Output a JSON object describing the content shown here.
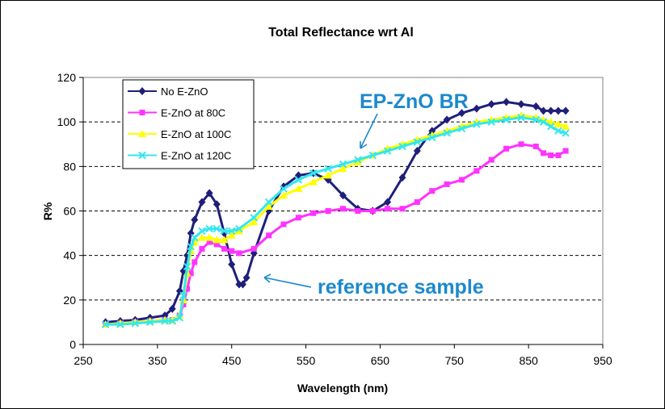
{
  "chart_data": {
    "type": "line",
    "title": "Total Reflectance wrt Al",
    "xlabel": "Wavelength (nm)",
    "ylabel": "R%",
    "xlim": [
      250,
      950
    ],
    "ylim": [
      0,
      120
    ],
    "xticks": [
      250,
      350,
      450,
      550,
      650,
      750,
      850,
      950
    ],
    "yticks": [
      0,
      20,
      40,
      60,
      80,
      100,
      120
    ],
    "grid": "horizontal dashed",
    "legend_position": "top-left",
    "annotations": [
      {
        "text": "EP-ZnO BR",
        "color": "#1c89cc",
        "points_to": [
          612,
          82
        ]
      },
      {
        "text": "reference sample",
        "color": "#1c89cc",
        "points_to": [
          462,
          29
        ]
      }
    ],
    "series": [
      {
        "name": "No E-ZnO",
        "color": "#1f1f7a",
        "marker": "diamond",
        "x": [
          280,
          300,
          320,
          340,
          360,
          370,
          380,
          385,
          390,
          395,
          400,
          410,
          420,
          430,
          440,
          450,
          460,
          465,
          470,
          480,
          500,
          520,
          540,
          560,
          580,
          600,
          620,
          640,
          660,
          680,
          700,
          720,
          740,
          760,
          780,
          800,
          820,
          840,
          860,
          870,
          880,
          890,
          900
        ],
        "y": [
          10,
          10.5,
          11,
          12,
          13,
          16,
          24,
          33,
          40,
          50,
          56,
          64,
          68,
          63,
          50,
          36,
          27,
          27,
          30,
          41,
          60,
          71,
          76,
          77,
          74,
          67,
          61,
          60,
          64,
          75,
          87,
          96,
          101,
          104,
          106,
          108,
          109,
          108,
          107,
          105,
          105,
          105,
          105
        ]
      },
      {
        "name": "E-ZnO at 80C",
        "color": "#ff33ff",
        "marker": "square",
        "x": [
          280,
          300,
          320,
          340,
          360,
          370,
          380,
          385,
          390,
          395,
          400,
          410,
          420,
          430,
          440,
          450,
          460,
          480,
          500,
          520,
          540,
          560,
          580,
          600,
          620,
          640,
          660,
          680,
          700,
          720,
          740,
          760,
          780,
          800,
          820,
          840,
          860,
          870,
          880,
          890,
          900
        ],
        "y": [
          9,
          9.5,
          10,
          10.5,
          11,
          11,
          13,
          18,
          25,
          32,
          37,
          43,
          46,
          45,
          43,
          42,
          41,
          43,
          49,
          54,
          57,
          59,
          60,
          61,
          60,
          60,
          61,
          61,
          64,
          69,
          72,
          74,
          78,
          83,
          88,
          90,
          89,
          86,
          85,
          85,
          87
        ]
      },
      {
        "name": "E-ZnO at 100C",
        "color": "#ffff00",
        "marker": "triangle",
        "x": [
          280,
          300,
          320,
          340,
          360,
          370,
          380,
          385,
          390,
          395,
          400,
          410,
          420,
          430,
          440,
          450,
          460,
          480,
          500,
          520,
          540,
          560,
          580,
          600,
          620,
          640,
          660,
          680,
          700,
          720,
          740,
          760,
          780,
          800,
          820,
          840,
          860,
          870,
          880,
          890,
          900
        ],
        "y": [
          9,
          9.5,
          10,
          10.5,
          11,
          11,
          13,
          20,
          32,
          42,
          46,
          48,
          48,
          47,
          47,
          49,
          51,
          55,
          62,
          67,
          70,
          73,
          76,
          79,
          82,
          85,
          88,
          90,
          92,
          94,
          96,
          98,
          100,
          101,
          102,
          103,
          102,
          101,
          100,
          99,
          98
        ]
      },
      {
        "name": "E-ZnO at 120C",
        "color": "#33e6f0",
        "marker": "x",
        "x": [
          280,
          300,
          320,
          340,
          360,
          370,
          380,
          385,
          390,
          395,
          400,
          410,
          420,
          430,
          440,
          450,
          460,
          480,
          500,
          520,
          540,
          560,
          580,
          600,
          620,
          640,
          660,
          680,
          700,
          720,
          740,
          760,
          780,
          800,
          820,
          840,
          860,
          870,
          880,
          890,
          900
        ],
        "y": [
          9,
          9,
          9.5,
          10,
          10.5,
          10.5,
          12,
          22,
          35,
          44,
          48,
          51,
          52,
          52,
          51,
          51,
          52,
          57,
          64,
          70,
          74,
          77,
          79,
          81,
          83,
          85,
          87,
          89,
          91,
          93,
          95,
          97,
          99,
          100,
          101,
          102,
          101,
          100,
          98,
          96,
          95
        ]
      }
    ]
  }
}
